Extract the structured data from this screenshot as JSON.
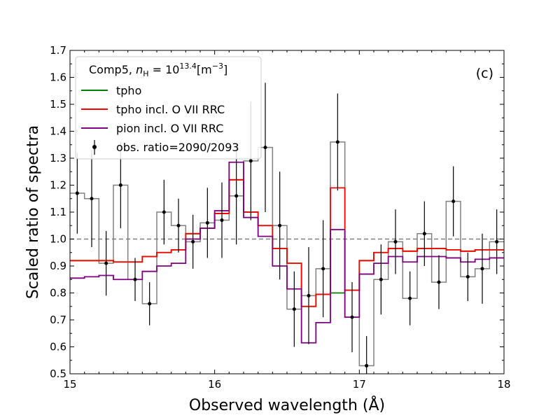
{
  "chart_data": {
    "type": "line",
    "panel_label": "(c)",
    "xlabel": "Observed wavelength (Å)",
    "ylabel": "Scaled ratio of spectra",
    "xlim": [
      15,
      18
    ],
    "ylim": [
      0.5,
      1.7
    ],
    "xticks": [
      15,
      16,
      17,
      18
    ],
    "yticks": [
      0.5,
      0.6,
      0.7,
      0.8,
      0.9,
      1.0,
      1.1,
      1.2,
      1.3,
      1.4,
      1.5,
      1.6,
      1.7
    ],
    "ytick_labels": [
      "0.5",
      "0.6",
      "0.7",
      "0.8",
      "0.9",
      "1.0",
      "1.1",
      "1.2",
      "1.3",
      "1.4",
      "1.5",
      "1.6",
      "1.7"
    ],
    "reference_line": {
      "y": 1.0,
      "style": "dashed",
      "color": "#808080"
    },
    "legend": {
      "placement": "top-left",
      "title_main": "Comp5, ",
      "title_n": "n",
      "title_sub": "H",
      "title_eq": " = 10",
      "title_sup": "13.4",
      "title_unit": "[m",
      "title_unit_sup": "−3",
      "title_end": "]"
    },
    "bin_edges": [
      15.0,
      15.1,
      15.2,
      15.3,
      15.4,
      15.5,
      15.6,
      15.7,
      15.8,
      15.9,
      16.0,
      16.1,
      16.2,
      16.3,
      16.4,
      16.5,
      16.6,
      16.7,
      16.8,
      16.9,
      17.0,
      17.1,
      17.2,
      17.3,
      17.4,
      17.5,
      17.6,
      17.7,
      17.8,
      17.9,
      18.0
    ],
    "series": [
      {
        "name": "obs. ratio=2090/2093",
        "kind": "errorbar",
        "color": "#000000",
        "step_color": "#808080",
        "x": [
          15.05,
          15.15,
          15.25,
          15.35,
          15.45,
          15.55,
          15.65,
          15.75,
          15.85,
          15.95,
          16.05,
          16.15,
          16.25,
          16.35,
          16.45,
          16.55,
          16.65,
          16.75,
          16.85,
          16.95,
          17.05,
          17.15,
          17.25,
          17.35,
          17.45,
          17.55,
          17.65,
          17.75,
          17.85,
          17.95
        ],
        "y": [
          1.17,
          1.15,
          0.91,
          1.2,
          0.85,
          0.76,
          1.1,
          1.05,
          0.99,
          1.06,
          1.07,
          1.16,
          1.29,
          1.34,
          1.05,
          0.74,
          0.79,
          0.89,
          1.36,
          0.71,
          0.53,
          0.85,
          0.99,
          0.78,
          1.02,
          0.84,
          1.14,
          0.86,
          0.89,
          0.99
        ],
        "yerr": [
          0.15,
          0.18,
          0.12,
          0.16,
          0.08,
          0.08,
          0.12,
          0.1,
          0.1,
          0.13,
          0.14,
          0.18,
          0.22,
          0.24,
          0.2,
          0.14,
          0.18,
          0.18,
          0.18,
          0.13,
          0.11,
          0.13,
          0.12,
          0.1,
          0.12,
          0.1,
          0.13,
          0.09,
          0.13,
          0.12
        ]
      },
      {
        "name": "tpho",
        "kind": "step",
        "color": "#008000",
        "y": [
          0.92,
          0.92,
          0.92,
          0.915,
          0.915,
          0.935,
          0.95,
          0.96,
          1.02,
          1.04,
          1.095,
          1.22,
          1.1,
          1.05,
          0.965,
          0.91,
          0.75,
          0.795,
          0.8,
          0.81,
          0.92,
          0.95,
          0.965,
          0.955,
          0.965,
          0.965,
          0.96,
          0.955,
          0.96,
          0.96
        ]
      },
      {
        "name": "tpho incl. O VII RRC",
        "kind": "step",
        "color": "#ff0000",
        "y": [
          0.92,
          0.92,
          0.92,
          0.915,
          0.915,
          0.935,
          0.95,
          0.96,
          1.02,
          1.04,
          1.095,
          1.22,
          1.1,
          1.05,
          0.965,
          0.91,
          0.75,
          0.795,
          1.19,
          0.81,
          0.92,
          0.95,
          0.965,
          0.955,
          0.965,
          0.965,
          0.96,
          0.955,
          0.96,
          0.96
        ]
      },
      {
        "name": "pion incl. O VII RRC",
        "kind": "step",
        "color": "#800080",
        "y": [
          0.855,
          0.86,
          0.865,
          0.85,
          0.85,
          0.88,
          0.9,
          0.91,
          1.0,
          1.04,
          1.105,
          1.285,
          1.08,
          1.01,
          0.9,
          0.815,
          0.615,
          0.69,
          1.035,
          0.71,
          0.87,
          0.91,
          0.935,
          0.915,
          0.935,
          0.935,
          0.93,
          0.915,
          0.925,
          0.93
        ]
      }
    ]
  }
}
